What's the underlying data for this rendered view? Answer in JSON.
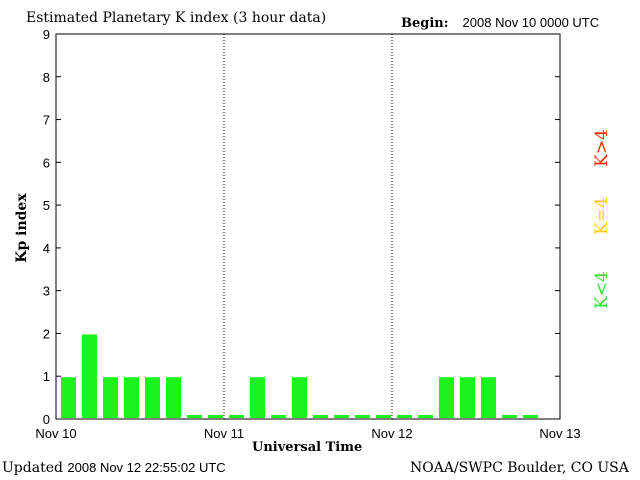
{
  "header": {
    "title": "Estimated Planetary K index (3 hour data)",
    "begin_label": "Begin:",
    "begin_value": "2008 Nov 10 0000 UTC"
  },
  "footer": {
    "updated_label": "Updated",
    "updated_value": "2008 Nov 12 22:55:02 UTC",
    "source": "NOAA/SWPC Boulder, CO USA"
  },
  "legend": {
    "high": "K>4",
    "equal": "K=4",
    "low": "K<4"
  },
  "colors": {
    "low": "#1ef21e",
    "equal": "#ffcc00",
    "high": "#ff2a00"
  },
  "chart_data": {
    "type": "bar",
    "xlabel": "Universal Time",
    "ylabel": "Kp index",
    "ylim": [
      0,
      9
    ],
    "yticks": [
      "0",
      "1",
      "2",
      "3",
      "4",
      "5",
      "6",
      "7",
      "8",
      "9"
    ],
    "xticks": [
      "Nov 10",
      "Nov 11",
      "Nov 12",
      "Nov 13"
    ],
    "day_separators": [
      "Nov 11",
      "Nov 12"
    ],
    "bar_interval": "3 hour",
    "values": [
      1,
      2,
      1,
      1,
      1,
      1,
      0,
      0,
      0,
      1,
      0,
      1,
      0,
      0,
      0,
      0,
      0,
      0,
      1,
      1,
      1,
      0,
      0
    ]
  }
}
